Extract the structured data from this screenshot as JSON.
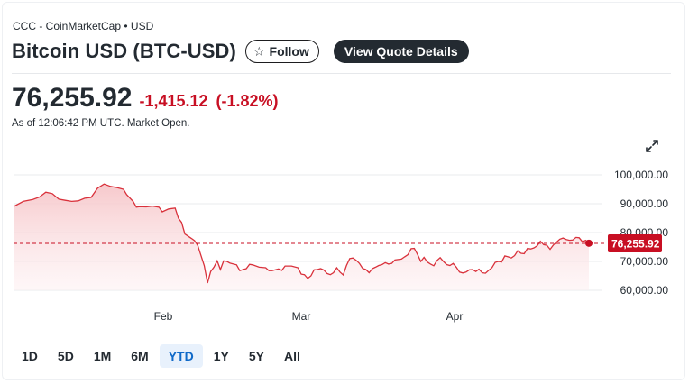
{
  "header": {
    "source": "CCC - CoinMarketCap • USD",
    "title": "Bitcoin USD (BTC-USD)",
    "follow_label": "Follow",
    "quote_label": "View Quote Details"
  },
  "quote": {
    "price": "76,255.92",
    "change": "-1,415.12",
    "change_pct": "(-1.82%)",
    "as_of": "As of 12:06:42 PM UTC. Market Open."
  },
  "colors": {
    "negative": "#c80f23",
    "line": "#d9313b",
    "fill_top": "#f6c6c9",
    "accent": "#0f69c8"
  },
  "icons": {
    "follow": "star-icon",
    "expand": "expand-icon"
  },
  "ranges": [
    {
      "label": "1D",
      "active": false
    },
    {
      "label": "5D",
      "active": false
    },
    {
      "label": "1M",
      "active": false
    },
    {
      "label": "6M",
      "active": false
    },
    {
      "label": "YTD",
      "active": true
    },
    {
      "label": "1Y",
      "active": false
    },
    {
      "label": "5Y",
      "active": false
    },
    {
      "label": "All",
      "active": false
    }
  ],
  "chart_data": {
    "type": "area",
    "x_labels": [
      "Feb",
      "Mar",
      "Apr"
    ],
    "x_label_dates": [
      "2025-02-01",
      "2025-03-01",
      "2025-04-01"
    ],
    "y_ticks": [
      "100,000.00",
      "90,000.00",
      "80,000.00",
      "70,000.00",
      "60,000.00"
    ],
    "y_tick_values": [
      100000,
      90000,
      80000,
      70000,
      60000
    ],
    "ylim": [
      60000,
      100000
    ],
    "grid": true,
    "current_price": 76255.92,
    "current_label": "76,255.92",
    "series": [
      {
        "values": [
          [
            0,
            89000
          ],
          [
            3,
            90800
          ],
          [
            6,
            91500
          ],
          [
            8,
            92300
          ],
          [
            10,
            94000
          ],
          [
            12,
            93500
          ],
          [
            14,
            91600
          ],
          [
            16,
            91200
          ],
          [
            18,
            90800
          ],
          [
            20,
            91000
          ],
          [
            22,
            91900
          ],
          [
            24,
            92200
          ],
          [
            26,
            95400
          ],
          [
            28,
            96800
          ],
          [
            30,
            96000
          ],
          [
            32,
            95600
          ],
          [
            34,
            95000
          ],
          [
            35,
            93200
          ],
          [
            37,
            90800
          ],
          [
            38,
            88800
          ],
          [
            39,
            89000
          ],
          [
            41,
            88900
          ],
          [
            43,
            89200
          ],
          [
            45,
            88800
          ],
          [
            46,
            87200
          ],
          [
            48,
            88200
          ],
          [
            50,
            88500
          ],
          [
            51,
            85000
          ],
          [
            52,
            83500
          ],
          [
            53,
            79500
          ],
          [
            55,
            78000
          ],
          [
            56,
            77200
          ],
          [
            57,
            75500
          ],
          [
            58,
            72000
          ],
          [
            59,
            68500
          ],
          [
            60,
            62500
          ],
          [
            61,
            66500
          ],
          [
            62,
            68000
          ],
          [
            63,
            70200
          ],
          [
            64,
            67200
          ],
          [
            65,
            70200
          ],
          [
            66,
            70000
          ],
          [
            67,
            69400
          ],
          [
            69,
            68800
          ],
          [
            70,
            66800
          ],
          [
            71,
            67200
          ],
          [
            72,
            67500
          ],
          [
            73,
            69000
          ],
          [
            74,
            68800
          ],
          [
            76,
            68000
          ],
          [
            78,
            67800
          ],
          [
            79,
            66800
          ],
          [
            80,
            66800
          ],
          [
            82,
            67400
          ],
          [
            83,
            66900
          ],
          [
            84,
            68400
          ],
          [
            86,
            68400
          ],
          [
            88,
            67800
          ],
          [
            89,
            65600
          ],
          [
            90,
            65400
          ],
          [
            91,
            64100
          ],
          [
            92,
            65000
          ],
          [
            93,
            67100
          ],
          [
            94,
            67200
          ],
          [
            95,
            67500
          ],
          [
            96,
            67000
          ],
          [
            97,
            65800
          ],
          [
            98,
            65400
          ],
          [
            99,
            66100
          ],
          [
            100,
            67800
          ],
          [
            101,
            66300
          ],
          [
            102,
            65300
          ],
          [
            103,
            68600
          ],
          [
            104,
            71000
          ],
          [
            105,
            71200
          ],
          [
            106,
            70400
          ],
          [
            107,
            69300
          ],
          [
            108,
            67600
          ],
          [
            109,
            67200
          ],
          [
            110,
            66100
          ],
          [
            111,
            67500
          ],
          [
            112,
            68000
          ],
          [
            113,
            68600
          ],
          [
            114,
            68900
          ],
          [
            115,
            69600
          ],
          [
            116,
            69100
          ],
          [
            117,
            69300
          ],
          [
            118,
            70500
          ],
          [
            120,
            70800
          ],
          [
            121,
            71600
          ],
          [
            122,
            72300
          ],
          [
            123,
            74400
          ],
          [
            124,
            74500
          ],
          [
            125,
            72400
          ],
          [
            126,
            70000
          ],
          [
            127,
            71400
          ],
          [
            128,
            69800
          ],
          [
            129,
            69100
          ],
          [
            130,
            68500
          ],
          [
            131,
            70300
          ],
          [
            132,
            71300
          ],
          [
            133,
            70000
          ],
          [
            134,
            68900
          ],
          [
            135,
            68600
          ],
          [
            136,
            69300
          ],
          [
            137,
            68000
          ],
          [
            138,
            66300
          ],
          [
            139,
            66000
          ],
          [
            140,
            66300
          ],
          [
            141,
            67100
          ],
          [
            142,
            67200
          ],
          [
            143,
            66500
          ],
          [
            144,
            67300
          ],
          [
            145,
            66100
          ],
          [
            146,
            65900
          ],
          [
            147,
            66900
          ],
          [
            148,
            67800
          ],
          [
            149,
            69700
          ],
          [
            150,
            70000
          ],
          [
            151,
            69800
          ],
          [
            152,
            71900
          ],
          [
            153,
            71600
          ],
          [
            154,
            71200
          ],
          [
            155,
            72000
          ],
          [
            156,
            73700
          ],
          [
            157,
            72800
          ],
          [
            158,
            72700
          ],
          [
            159,
            74500
          ],
          [
            160,
            74300
          ],
          [
            161,
            74700
          ],
          [
            162,
            75400
          ],
          [
            163,
            77000
          ],
          [
            164,
            75800
          ],
          [
            165,
            75600
          ],
          [
            166,
            74200
          ],
          [
            167,
            75700
          ],
          [
            168,
            76700
          ],
          [
            169,
            77700
          ],
          [
            170,
            78100
          ],
          [
            171,
            77600
          ],
          [
            172,
            77300
          ],
          [
            173,
            77400
          ],
          [
            174,
            78300
          ],
          [
            175,
            78200
          ],
          [
            176,
            76800
          ],
          [
            177,
            77300
          ],
          [
            178,
            76300
          ]
        ]
      }
    ],
    "x_domain": [
      0,
      178
    ]
  }
}
